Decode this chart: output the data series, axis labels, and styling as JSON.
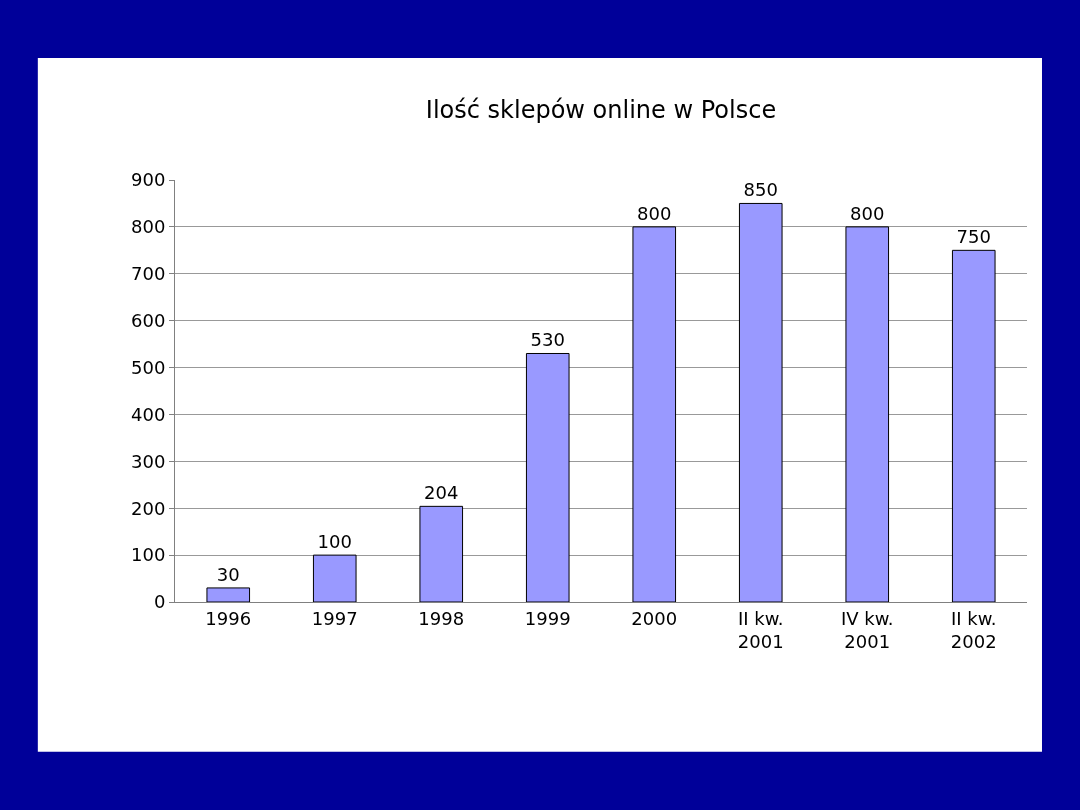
{
  "chart_data": {
    "type": "bar",
    "title": "Ilość sklepów online w Polsce",
    "categories": [
      "1996",
      "1997",
      "1998",
      "1999",
      "2000",
      "II kw.\n2001",
      "IV kw.\n2001",
      "II kw.\n2002"
    ],
    "values": [
      30,
      100,
      204,
      530,
      800,
      850,
      800,
      750
    ],
    "color": "#9999ff",
    "ylim": [
      0,
      900
    ],
    "yticks": [
      0,
      100,
      200,
      300,
      400,
      500,
      600,
      700,
      800,
      900
    ],
    "grid": "y",
    "data_labels": true,
    "legend": false
  }
}
